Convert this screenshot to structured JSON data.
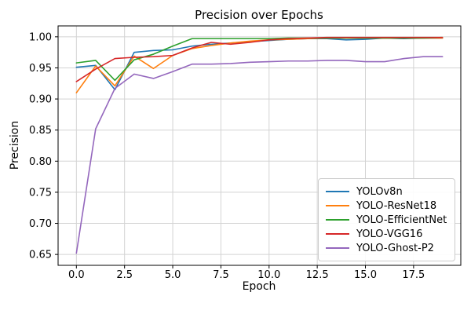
{
  "figure": {
    "background": "#ffffff"
  },
  "chart_data": {
    "type": "line",
    "title": "Precision over Epochs",
    "xlabel": "Epoch",
    "ylabel": "Precision",
    "grid": true,
    "grid_color": "#d3d3d3",
    "legend_position": "lower right",
    "xlim": [
      -0.95,
      19.95
    ],
    "ylim": [
      0.6325,
      1.0175
    ],
    "xticks": {
      "values": [
        0,
        2.5,
        5,
        7.5,
        10,
        12.5,
        15,
        17.5
      ],
      "labels": [
        "0.0",
        "2.5",
        "5.0",
        "7.5",
        "10.0",
        "12.5",
        "15.0",
        "17.5"
      ]
    },
    "yticks": {
      "values": [
        0.65,
        0.7,
        0.75,
        0.8,
        0.85,
        0.9,
        0.95,
        1.0
      ],
      "labels": [
        "0.65",
        "0.70",
        "0.75",
        "0.80",
        "0.85",
        "0.90",
        "0.95",
        "1.00"
      ]
    },
    "x": [
      0,
      1,
      2,
      3,
      4,
      5,
      6,
      7,
      8,
      9,
      10,
      11,
      12,
      13,
      14,
      15,
      16,
      17,
      18,
      19
    ],
    "series": [
      {
        "name": "YOLOv8n",
        "color": "#1f77b4",
        "values": [
          0.951,
          0.954,
          0.915,
          0.975,
          0.978,
          0.979,
          0.985,
          0.988,
          0.99,
          0.992,
          0.994,
          0.996,
          0.997,
          0.997,
          0.995,
          0.996,
          0.998,
          0.997,
          0.998,
          0.998
        ]
      },
      {
        "name": "YOLO-ResNet18",
        "color": "#ff7f0e",
        "values": [
          0.91,
          0.953,
          0.921,
          0.969,
          0.949,
          0.97,
          0.981,
          0.986,
          0.99,
          0.993,
          0.995,
          0.996,
          0.997,
          0.998,
          0.998,
          0.998,
          0.998,
          0.998,
          0.998,
          0.998
        ]
      },
      {
        "name": "YOLO-EfficientNet",
        "color": "#2ca02c",
        "values": [
          0.958,
          0.962,
          0.93,
          0.963,
          0.972,
          0.985,
          0.997,
          0.997,
          0.997,
          0.997,
          0.997,
          0.998,
          0.998,
          0.998,
          0.998,
          0.998,
          0.998,
          0.998,
          0.998,
          0.999
        ]
      },
      {
        "name": "YOLO-VGG16",
        "color": "#d62728",
        "values": [
          0.928,
          0.948,
          0.965,
          0.967,
          0.968,
          0.97,
          0.982,
          0.991,
          0.988,
          0.991,
          0.995,
          0.997,
          0.998,
          0.999,
          0.999,
          0.999,
          0.999,
          0.999,
          0.999,
          0.999
        ]
      },
      {
        "name": "YOLO-Ghost-P2",
        "color": "#9467bd",
        "values": [
          0.652,
          0.852,
          0.917,
          0.94,
          0.933,
          0.944,
          0.956,
          0.956,
          0.957,
          0.959,
          0.96,
          0.961,
          0.961,
          0.962,
          0.962,
          0.96,
          0.96,
          0.965,
          0.968,
          0.968
        ]
      }
    ]
  }
}
